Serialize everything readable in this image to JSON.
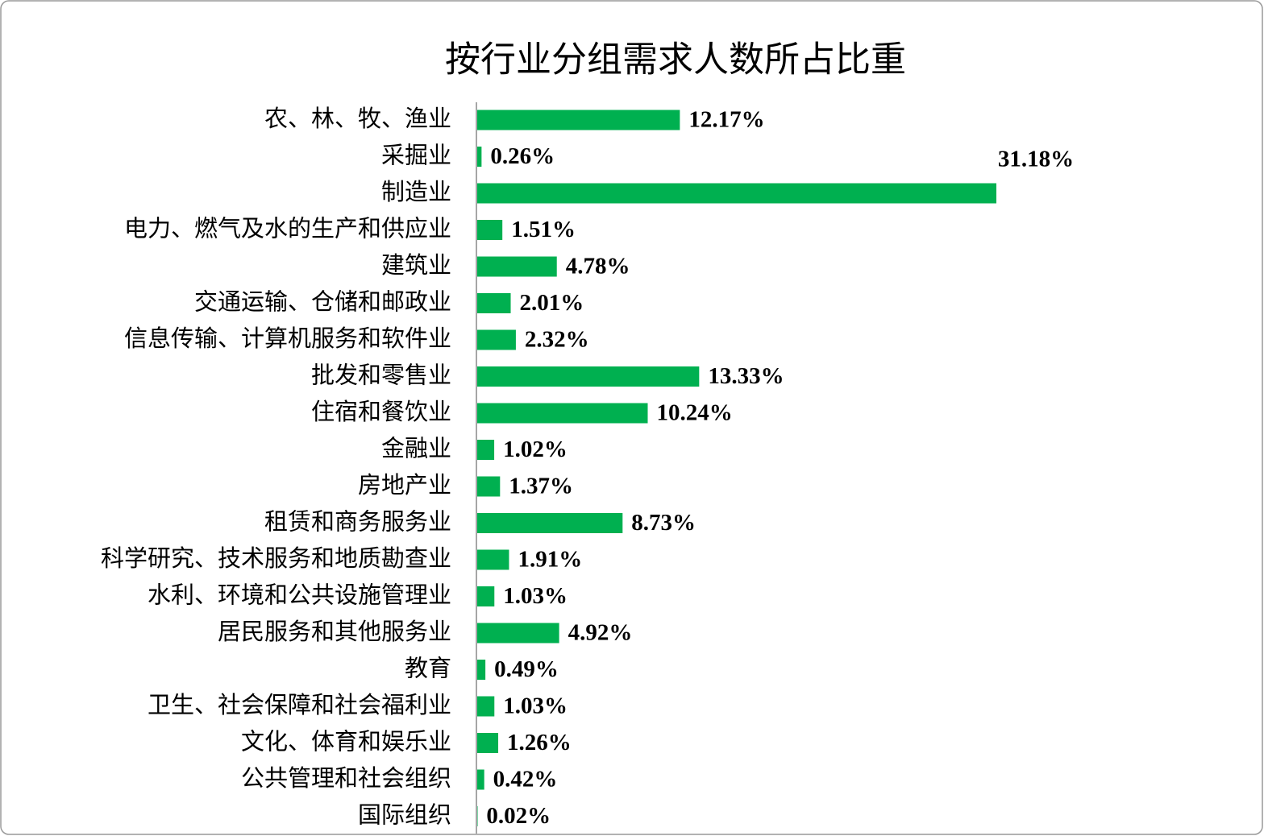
{
  "chart_data": {
    "type": "bar",
    "orientation": "horizontal",
    "title": "按行业分组需求人数所占比重",
    "color": "#00b050",
    "categories": [
      "农、林、牧、渔业",
      "采掘业",
      "制造业",
      "电力、燃气及水的生产和供应业",
      "建筑业",
      "交通运输、仓储和邮政业",
      "信息传输、计算机服务和软件业",
      "批发和零售业",
      "住宿和餐饮业",
      "金融业",
      "房地产业",
      "租赁和商务服务业",
      "科学研究、技术服务和地质勘查业",
      "水利、环境和公共设施管理业",
      "居民服务和其他服务业",
      "教育",
      "卫生、社会保障和社会福利业",
      "文化、体育和娱乐业",
      "公共管理和社会组织",
      "国际组织"
    ],
    "values": [
      12.17,
      0.26,
      31.18,
      1.51,
      4.78,
      2.01,
      2.32,
      13.33,
      10.24,
      1.02,
      1.37,
      8.73,
      1.91,
      1.03,
      4.92,
      0.49,
      1.03,
      1.26,
      0.42,
      0.02
    ],
    "value_labels": [
      "12.17%",
      "0.26%",
      "31.18%",
      "1.51%",
      "4.78%",
      "2.01%",
      "2.32%",
      "13.33%",
      "10.24%",
      "1.02%",
      "1.37%",
      "8.73%",
      "1.91%",
      "1.03%",
      "4.92%",
      "0.49%",
      "1.03%",
      "1.26%",
      "0.42%",
      "0.02%"
    ]
  }
}
